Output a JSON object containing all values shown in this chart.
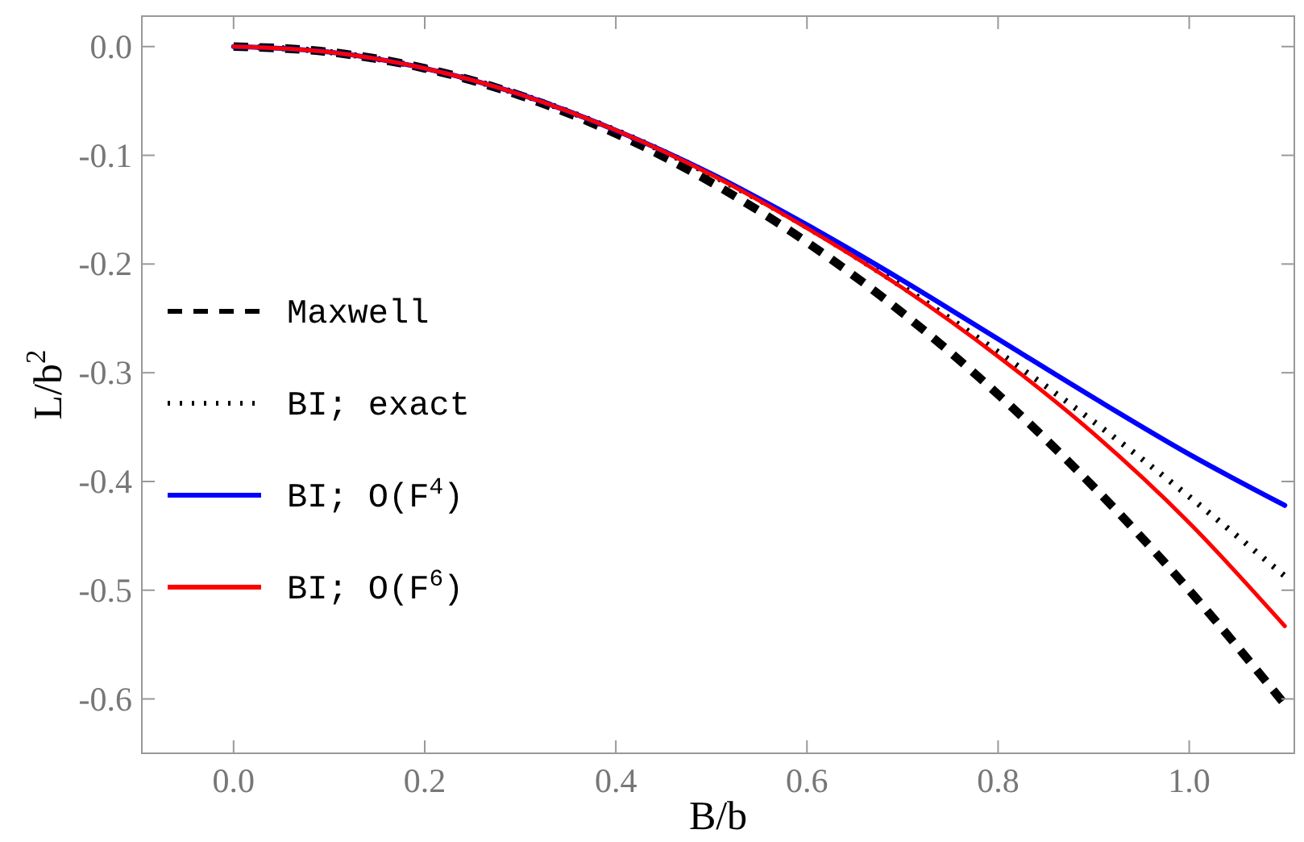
{
  "chart_data": {
    "type": "line",
    "xlabel": "B/b",
    "ylabel": "L/b$^{2}$",
    "x": [
      0,
      0.1,
      0.2,
      0.3,
      0.4,
      0.5,
      0.6,
      0.7,
      0.8,
      0.9,
      1.0,
      1.1
    ],
    "xlim": [
      -0.096,
      1.11
    ],
    "ylim": [
      -0.65,
      0.028
    ],
    "xticks": [
      {
        "value": 0,
        "label": "0.0"
      },
      {
        "value": 0.2,
        "label": "0.2"
      },
      {
        "value": 0.4,
        "label": "0.4"
      },
      {
        "value": 0.6,
        "label": "0.6"
      },
      {
        "value": 0.8,
        "label": "0.8"
      },
      {
        "value": 1.0,
        "label": "1.0"
      }
    ],
    "yticks": [
      {
        "value": 0,
        "label": "0.0"
      },
      {
        "value": -0.1,
        "label": "-0.1"
      },
      {
        "value": -0.2,
        "label": "-0.2"
      },
      {
        "value": -0.3,
        "label": "-0.3"
      },
      {
        "value": -0.4,
        "label": "-0.4"
      },
      {
        "value": -0.5,
        "label": "-0.5"
      },
      {
        "value": -0.6,
        "label": "-0.6"
      }
    ],
    "grid": false,
    "legend": "left",
    "marker": "none",
    "series": [
      {
        "name": "Maxwell",
        "color": "#000000",
        "line_style": "dashed",
        "values": [
          0,
          -0.005,
          -0.02,
          -0.045,
          -0.08,
          -0.125,
          -0.18,
          -0.245,
          -0.32,
          -0.405,
          -0.5,
          -0.605
        ]
      },
      {
        "name": "BI; exact",
        "color": "#000000",
        "line_style": "dotted",
        "values": [
          0,
          -0.005,
          -0.02,
          -0.044,
          -0.077,
          -0.118,
          -0.166,
          -0.221,
          -0.281,
          -0.345,
          -0.414,
          -0.487
        ]
      },
      {
        "name": "BI; O(F$^{4}$)",
        "color": "#0000ff",
        "line_style": "solid",
        "values": [
          0,
          -0.005,
          -0.02,
          -0.044,
          -0.077,
          -0.117,
          -0.164,
          -0.215,
          -0.269,
          -0.323,
          -0.375,
          -0.422
        ]
      },
      {
        "name": "BI; O(F$^{6}$)",
        "color": "#ff0000",
        "line_style": "solid",
        "values": [
          0,
          -0.005,
          -0.02,
          -0.044,
          -0.077,
          -0.118,
          -0.167,
          -0.222,
          -0.285,
          -0.356,
          -0.438,
          -0.533
        ]
      }
    ]
  }
}
